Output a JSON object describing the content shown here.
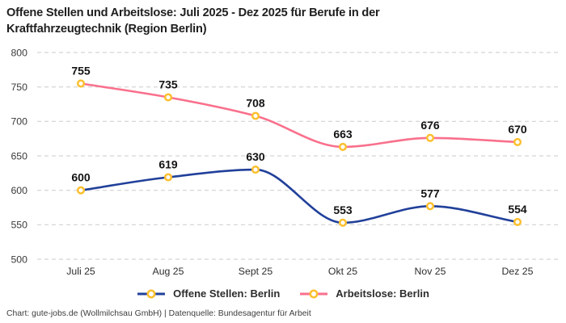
{
  "title": "Offene Stellen und Arbeitslose: Juli 2025 - Dez 2025 für Berufe in der Kraftfahrzeugtechnik (Region Berlin)",
  "footer": "Chart: gute-jobs.de (Wollmilchsau GmbH) | Datenquelle: Bundesagentur für Arbeit",
  "legend": [
    {
      "label": "Offene Stellen: Berlin",
      "color": "#21409a"
    },
    {
      "label": "Arbeitslose: Berlin",
      "color": "#f9708c"
    }
  ],
  "chart_data": {
    "type": "line",
    "title": "Offene Stellen und Arbeitslose: Juli 2025 - Dez 2025 für Berufe in der Kraftfahrzeugtechnik (Region Berlin)",
    "categories": [
      "Juli 25",
      "Aug 25",
      "Sept 25",
      "Okt 25",
      "Nov 25",
      "Dez 25"
    ],
    "series": [
      {
        "name": "Offene Stellen: Berlin",
        "color": "#21409a",
        "values": [
          600,
          619,
          630,
          553,
          577,
          554
        ]
      },
      {
        "name": "Arbeitslose: Berlin",
        "color": "#f9708c",
        "values": [
          755,
          735,
          708,
          663,
          676,
          670
        ]
      }
    ],
    "ylim": [
      500,
      800
    ],
    "yticks": [
      500,
      550,
      600,
      650,
      700,
      750,
      800
    ],
    "xlabel": "",
    "ylabel": "",
    "grid": {
      "horizontal": true,
      "style": "dashed",
      "color": "#cbcbcb"
    },
    "marker": {
      "shape": "circle",
      "stroke": "#fcbf2d",
      "fill": "#ffffff"
    },
    "data_labels": true,
    "data_label_color": "#131313",
    "tick_label_color": "#3a3a3a",
    "legend_position": "bottom",
    "curve": "monotone"
  }
}
